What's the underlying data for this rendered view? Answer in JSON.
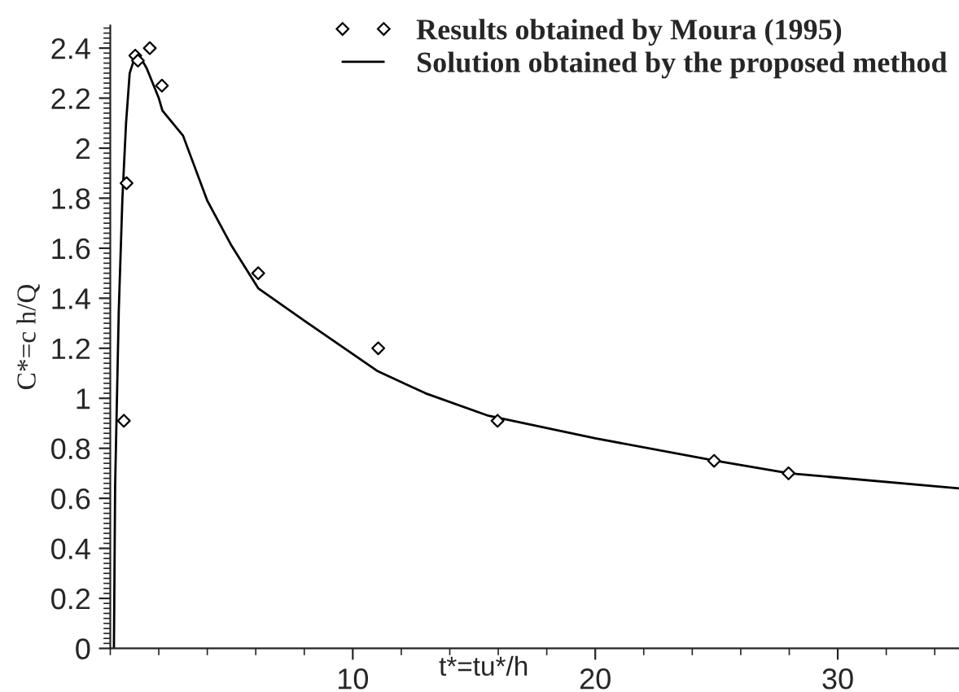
{
  "chart_data": {
    "type": "scatter",
    "xlabel": "t*=tu*/h",
    "ylabel": "C*=c h/Q",
    "xlim": [
      0,
      35
    ],
    "ylim": [
      0,
      2.49
    ],
    "xticks": [
      10,
      20,
      30
    ],
    "yticks": [
      0,
      0.2,
      0.4,
      0.6,
      0.8,
      1,
      1.2,
      1.4,
      1.6,
      1.8,
      2,
      2.2,
      2.4
    ],
    "grid": false,
    "legend": "top right",
    "series": [
      {
        "name": "Results obtained by Moura (1995)",
        "marker": "diamond",
        "color": "#000000",
        "x": [
          0.56,
          0.67,
          1.03,
          1.14,
          1.63,
          2.13,
          6.1,
          11.05,
          15.97,
          24.9,
          27.97
        ],
        "values": [
          0.91,
          1.86,
          2.37,
          2.35,
          2.4,
          2.25,
          1.5,
          1.2,
          0.91,
          0.75,
          0.7
        ]
      },
      {
        "name": "Solution obtained by the proposed method",
        "type": "line",
        "line_style": "solid",
        "color": "#000000",
        "x": [
          0.15,
          0.2,
          0.35,
          0.5,
          0.65,
          0.8,
          1.0,
          1.2,
          1.5,
          2.0,
          2.15,
          3,
          4,
          5,
          6.1,
          8,
          11,
          13,
          15.6,
          20,
          25,
          28,
          35
        ],
        "values": [
          0,
          0.65,
          1.35,
          1.8,
          2.1,
          2.3,
          2.36,
          2.37,
          2.32,
          2.2,
          2.15,
          2.05,
          1.79,
          1.61,
          1.44,
          1.31,
          1.11,
          1.02,
          0.93,
          0.84,
          0.75,
          0.7,
          0.64
        ]
      }
    ]
  }
}
